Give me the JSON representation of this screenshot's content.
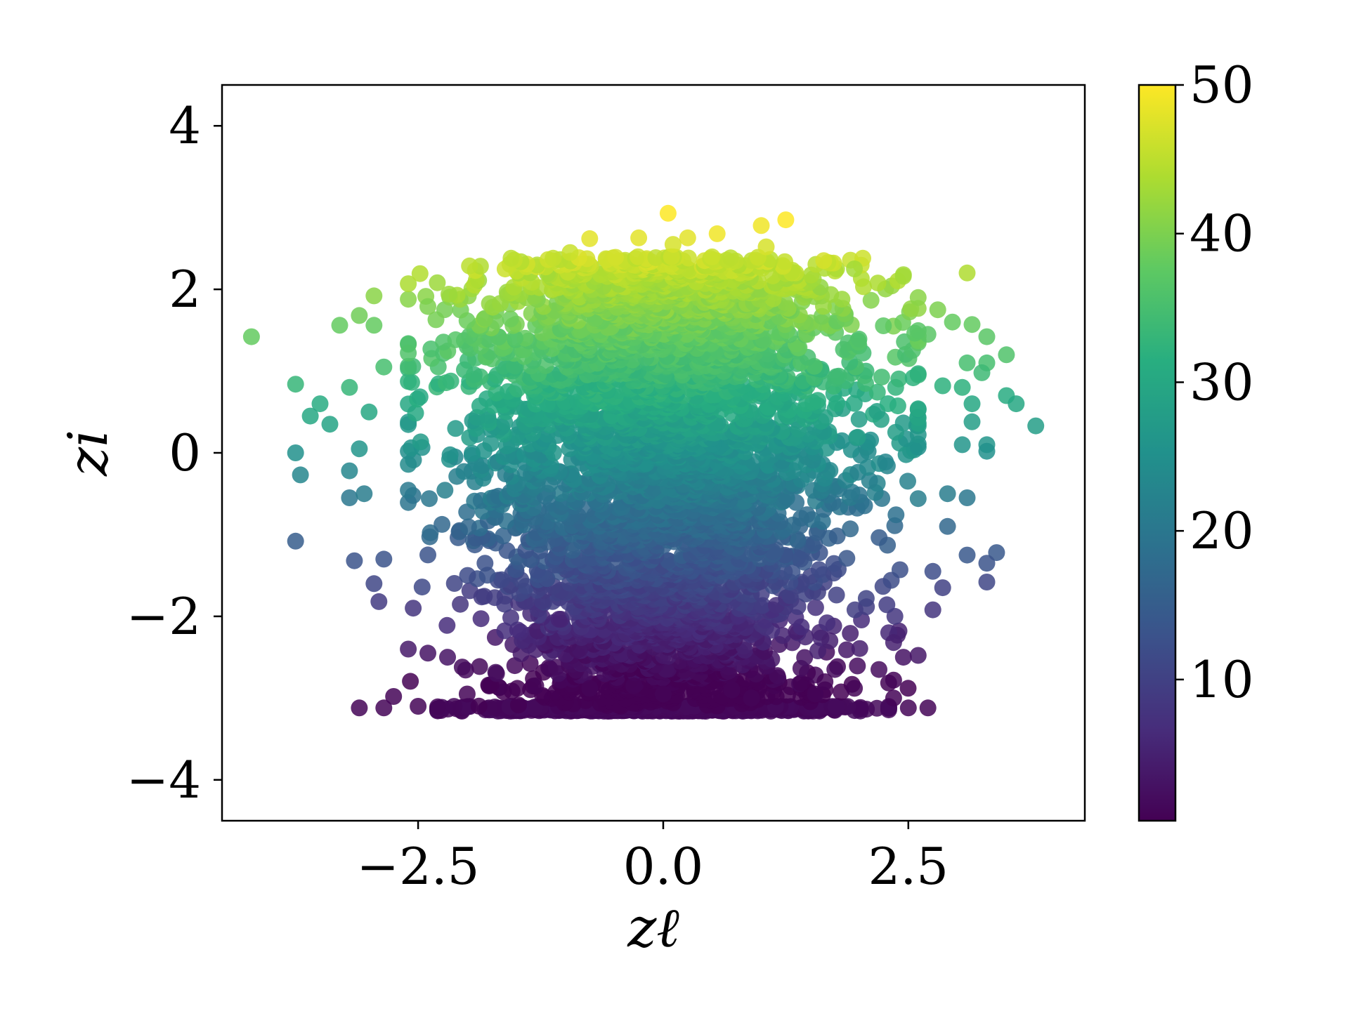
{
  "chart_data": {
    "type": "scatter",
    "title": "",
    "xlabel": "zℓ",
    "ylabel": "zi",
    "xlim": [
      -4.5,
      4.3
    ],
    "ylim": [
      -4.5,
      4.5
    ],
    "xticks": [
      -2.5,
      0.0,
      2.5
    ],
    "xtick_labels": [
      "−2.5",
      "0.0",
      "2.5"
    ],
    "yticks": [
      -4,
      -2,
      0,
      2,
      4
    ],
    "ytick_labels": [
      "−4",
      "−2",
      "0",
      "2",
      "4"
    ],
    "grid": false,
    "colormap": "viridis",
    "colorbar": {
      "range": [
        0.5,
        50
      ],
      "ticks": [
        10,
        20,
        30,
        40,
        50
      ],
      "tick_labels": [
        "10",
        "20",
        "30",
        "40",
        "50"
      ]
    },
    "color_variable_relation": "c ≈ 25 + 8.85·zi (dense central cloud, x≈N(0,1.1), y∈[-3.1,2.4])",
    "floor_y": -3.1,
    "points": [
      {
        "x": 0.05,
        "y": 2.93,
        "c": 50
      },
      {
        "x": 1.25,
        "y": 2.85,
        "c": 50
      },
      {
        "x": 1.0,
        "y": 2.78,
        "c": 49
      },
      {
        "x": 0.55,
        "y": 2.68,
        "c": 49
      },
      {
        "x": -0.75,
        "y": 2.62,
        "c": 48
      },
      {
        "x": -0.25,
        "y": 2.63,
        "c": 48
      },
      {
        "x": 0.25,
        "y": 2.63,
        "c": 48
      },
      {
        "x": 0.1,
        "y": 2.55,
        "c": 47
      },
      {
        "x": 1.05,
        "y": 2.52,
        "c": 47
      },
      {
        "x": -0.95,
        "y": 2.45,
        "c": 46
      },
      {
        "x": 3.1,
        "y": 2.2,
        "c": 44
      },
      {
        "x": 2.45,
        "y": 2.18,
        "c": 43
      },
      {
        "x": 1.95,
        "y": 2.25,
        "c": 43
      },
      {
        "x": -4.2,
        "y": 1.42,
        "c": 38
      },
      {
        "x": -3.3,
        "y": 1.56,
        "c": 38
      },
      {
        "x": -2.95,
        "y": 1.92,
        "c": 41
      },
      {
        "x": -3.1,
        "y": 1.68,
        "c": 39
      },
      {
        "x": -2.95,
        "y": 1.56,
        "c": 38
      },
      {
        "x": -2.4,
        "y": 1.79,
        "c": 40
      },
      {
        "x": -2.6,
        "y": 1.22,
        "c": 36
      },
      {
        "x": -2.85,
        "y": 1.05,
        "c": 35
      },
      {
        "x": -3.75,
        "y": 0.84,
        "c": 33
      },
      {
        "x": -3.2,
        "y": 0.8,
        "c": 33
      },
      {
        "x": -3.5,
        "y": 0.6,
        "c": 31
      },
      {
        "x": -3.6,
        "y": 0.45,
        "c": 30
      },
      {
        "x": -3.4,
        "y": 0.35,
        "c": 29
      },
      {
        "x": -3.0,
        "y": 0.5,
        "c": 30
      },
      {
        "x": -3.1,
        "y": 0.05,
        "c": 26
      },
      {
        "x": -3.75,
        "y": 0.0,
        "c": 25
      },
      {
        "x": -3.7,
        "y": -0.27,
        "c": 23
      },
      {
        "x": -3.2,
        "y": -0.22,
        "c": 23
      },
      {
        "x": -3.2,
        "y": -0.55,
        "c": 20
      },
      {
        "x": -3.05,
        "y": -0.5,
        "c": 21
      },
      {
        "x": -3.75,
        "y": -1.08,
        "c": 15
      },
      {
        "x": -3.15,
        "y": -1.32,
        "c": 13
      },
      {
        "x": -2.85,
        "y": -1.3,
        "c": 13
      },
      {
        "x": -2.95,
        "y": -1.6,
        "c": 11
      },
      {
        "x": -2.9,
        "y": -1.82,
        "c": 9
      },
      {
        "x": -2.55,
        "y": -1.9,
        "c": 8
      },
      {
        "x": -2.6,
        "y": -2.4,
        "c": 4
      },
      {
        "x": -2.4,
        "y": -2.45,
        "c": 3
      },
      {
        "x": -2.2,
        "y": -2.5,
        "c": 3
      },
      {
        "x": -2.05,
        "y": -2.62,
        "c": 2
      },
      {
        "x": -2.75,
        "y": -2.98,
        "c": 1
      },
      {
        "x": -3.1,
        "y": -3.12,
        "c": 1
      },
      {
        "x": -2.85,
        "y": -3.12,
        "c": 1
      },
      {
        "x": -2.5,
        "y": -3.1,
        "c": 1
      },
      {
        "x": 2.6,
        "y": 1.9,
        "c": 41
      },
      {
        "x": 2.8,
        "y": 1.75,
        "c": 40
      },
      {
        "x": 2.95,
        "y": 1.6,
        "c": 38
      },
      {
        "x": 3.15,
        "y": 1.57,
        "c": 38
      },
      {
        "x": 3.3,
        "y": 1.42,
        "c": 37
      },
      {
        "x": 2.7,
        "y": 1.45,
        "c": 37
      },
      {
        "x": 3.5,
        "y": 1.2,
        "c": 36
      },
      {
        "x": 3.1,
        "y": 1.1,
        "c": 35
      },
      {
        "x": 3.3,
        "y": 1.1,
        "c": 35
      },
      {
        "x": 3.25,
        "y": 0.98,
        "c": 34
      },
      {
        "x": 2.85,
        "y": 0.82,
        "c": 32
      },
      {
        "x": 3.05,
        "y": 0.8,
        "c": 32
      },
      {
        "x": 3.5,
        "y": 0.7,
        "c": 31
      },
      {
        "x": 3.6,
        "y": 0.6,
        "c": 30
      },
      {
        "x": 3.15,
        "y": 0.6,
        "c": 30
      },
      {
        "x": 3.8,
        "y": 0.33,
        "c": 28
      },
      {
        "x": 3.15,
        "y": 0.38,
        "c": 28
      },
      {
        "x": 3.3,
        "y": 0.1,
        "c": 26
      },
      {
        "x": 3.3,
        "y": 0.02,
        "c": 25
      },
      {
        "x": 3.05,
        "y": 0.1,
        "c": 26
      },
      {
        "x": 2.9,
        "y": -0.5,
        "c": 21
      },
      {
        "x": 3.1,
        "y": -0.55,
        "c": 20
      },
      {
        "x": 2.9,
        "y": -0.9,
        "c": 17
      },
      {
        "x": 3.4,
        "y": -1.22,
        "c": 14
      },
      {
        "x": 3.1,
        "y": -1.25,
        "c": 14
      },
      {
        "x": 3.3,
        "y": -1.35,
        "c": 13
      },
      {
        "x": 3.3,
        "y": -1.58,
        "c": 11
      },
      {
        "x": 2.75,
        "y": -1.45,
        "c": 12
      },
      {
        "x": 2.85,
        "y": -1.65,
        "c": 10
      },
      {
        "x": 2.75,
        "y": -1.92,
        "c": 8
      },
      {
        "x": 2.3,
        "y": -2.2,
        "c": 6
      },
      {
        "x": 2.35,
        "y": -2.32,
        "c": 5
      },
      {
        "x": 2.45,
        "y": -2.5,
        "c": 3
      },
      {
        "x": 2.2,
        "y": -2.65,
        "c": 2
      },
      {
        "x": 2.35,
        "y": -2.78,
        "c": 1
      },
      {
        "x": 2.35,
        "y": -3.0,
        "c": 1
      },
      {
        "x": 2.5,
        "y": -3.12,
        "c": 1
      },
      {
        "x": 2.7,
        "y": -3.12,
        "c": 1
      },
      {
        "x": 1.95,
        "y": -2.88,
        "c": 1
      },
      {
        "x": 1.55,
        "y": -2.95,
        "c": 1
      },
      {
        "x": 1.75,
        "y": -2.65,
        "c": 2
      },
      {
        "x": 1.65,
        "y": -2.8,
        "c": 1
      },
      {
        "x": 1.7,
        "y": -2.3,
        "c": 5
      },
      {
        "x": 1.4,
        "y": -1.3,
        "c": 13
      },
      {
        "x": -1.7,
        "y": -2.7,
        "c": 2
      },
      {
        "x": -2.0,
        "y": -2.95,
        "c": 1
      },
      {
        "x": -1.3,
        "y": -2.85,
        "c": 1
      },
      {
        "x": -0.75,
        "y": -2.88,
        "c": 1
      },
      {
        "x": -0.3,
        "y": -2.85,
        "c": 1
      },
      {
        "x": 0.0,
        "y": -2.95,
        "c": 1
      },
      {
        "x": 0.7,
        "y": -2.9,
        "c": 1
      },
      {
        "x": 0.9,
        "y": -3.0,
        "c": 1
      }
    ]
  }
}
